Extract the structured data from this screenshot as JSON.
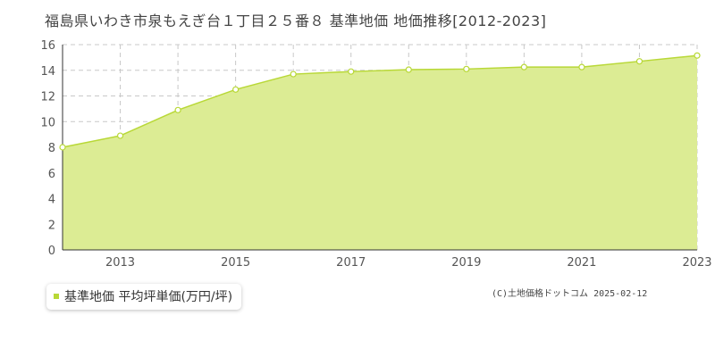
{
  "title": "福島県いわき市泉もえぎ台１丁目２５番８ 基準地価 地価推移[2012-2023]",
  "legend": {
    "label": "基準地価 平均坪単価(万円/坪)",
    "color": "#b8d836"
  },
  "copyright": "(C)土地価格ドットコム 2025-02-12",
  "colors": {
    "fill": "#dcec94",
    "line": "#b8d836",
    "marker_fill": "#ffffff",
    "grid": "#c8c8c8"
  },
  "chart_data": {
    "type": "area",
    "title": "福島県いわき市泉もえぎ台１丁目２５番８ 基準地価 地価推移[2012-2023]",
    "x": [
      2012,
      2013,
      2014,
      2015,
      2016,
      2017,
      2018,
      2019,
      2020,
      2021,
      2022,
      2023
    ],
    "x_tick_labels": [
      "2013",
      "2015",
      "2017",
      "2019",
      "2021",
      "2023"
    ],
    "x_tick_values": [
      2013,
      2015,
      2017,
      2019,
      2021,
      2023
    ],
    "y_tick_labels": [
      "0",
      "2",
      "4",
      "6",
      "8",
      "10",
      "12",
      "14",
      "16"
    ],
    "y_tick_values": [
      0,
      2,
      4,
      6,
      8,
      10,
      12,
      14,
      16
    ],
    "xlim": [
      2012,
      2023
    ],
    "ylim": [
      0,
      16
    ],
    "grid": true,
    "series": [
      {
        "name": "基準地価 平均坪単価(万円/坪)",
        "values": [
          8.0,
          8.9,
          10.9,
          12.5,
          13.7,
          13.9,
          14.05,
          14.1,
          14.25,
          14.25,
          14.7,
          15.15
        ]
      }
    ]
  }
}
